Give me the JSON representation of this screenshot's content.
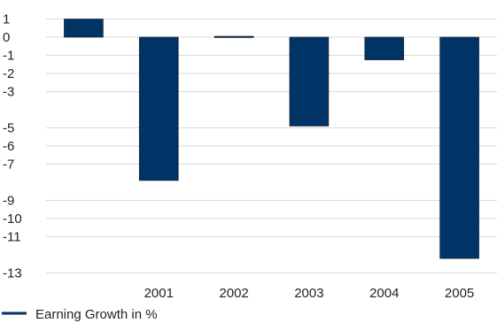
{
  "chart_data": {
    "type": "bar",
    "categories": [
      "",
      "2001",
      "2002",
      "2003",
      "2004",
      "2005"
    ],
    "series": [
      {
        "name": "Earning Growth in %",
        "values": [
          1.0,
          -7.9,
          0.05,
          -4.9,
          -1.25,
          -12.2
        ],
        "color": "#003466"
      }
    ],
    "y_ticks": [
      1,
      0,
      -1,
      -2,
      -3,
      -5,
      -6,
      -7,
      -9,
      -10,
      -11,
      -13
    ],
    "ylim": [
      -13,
      1
    ],
    "grid": true,
    "legend_position": "bottom-left"
  }
}
